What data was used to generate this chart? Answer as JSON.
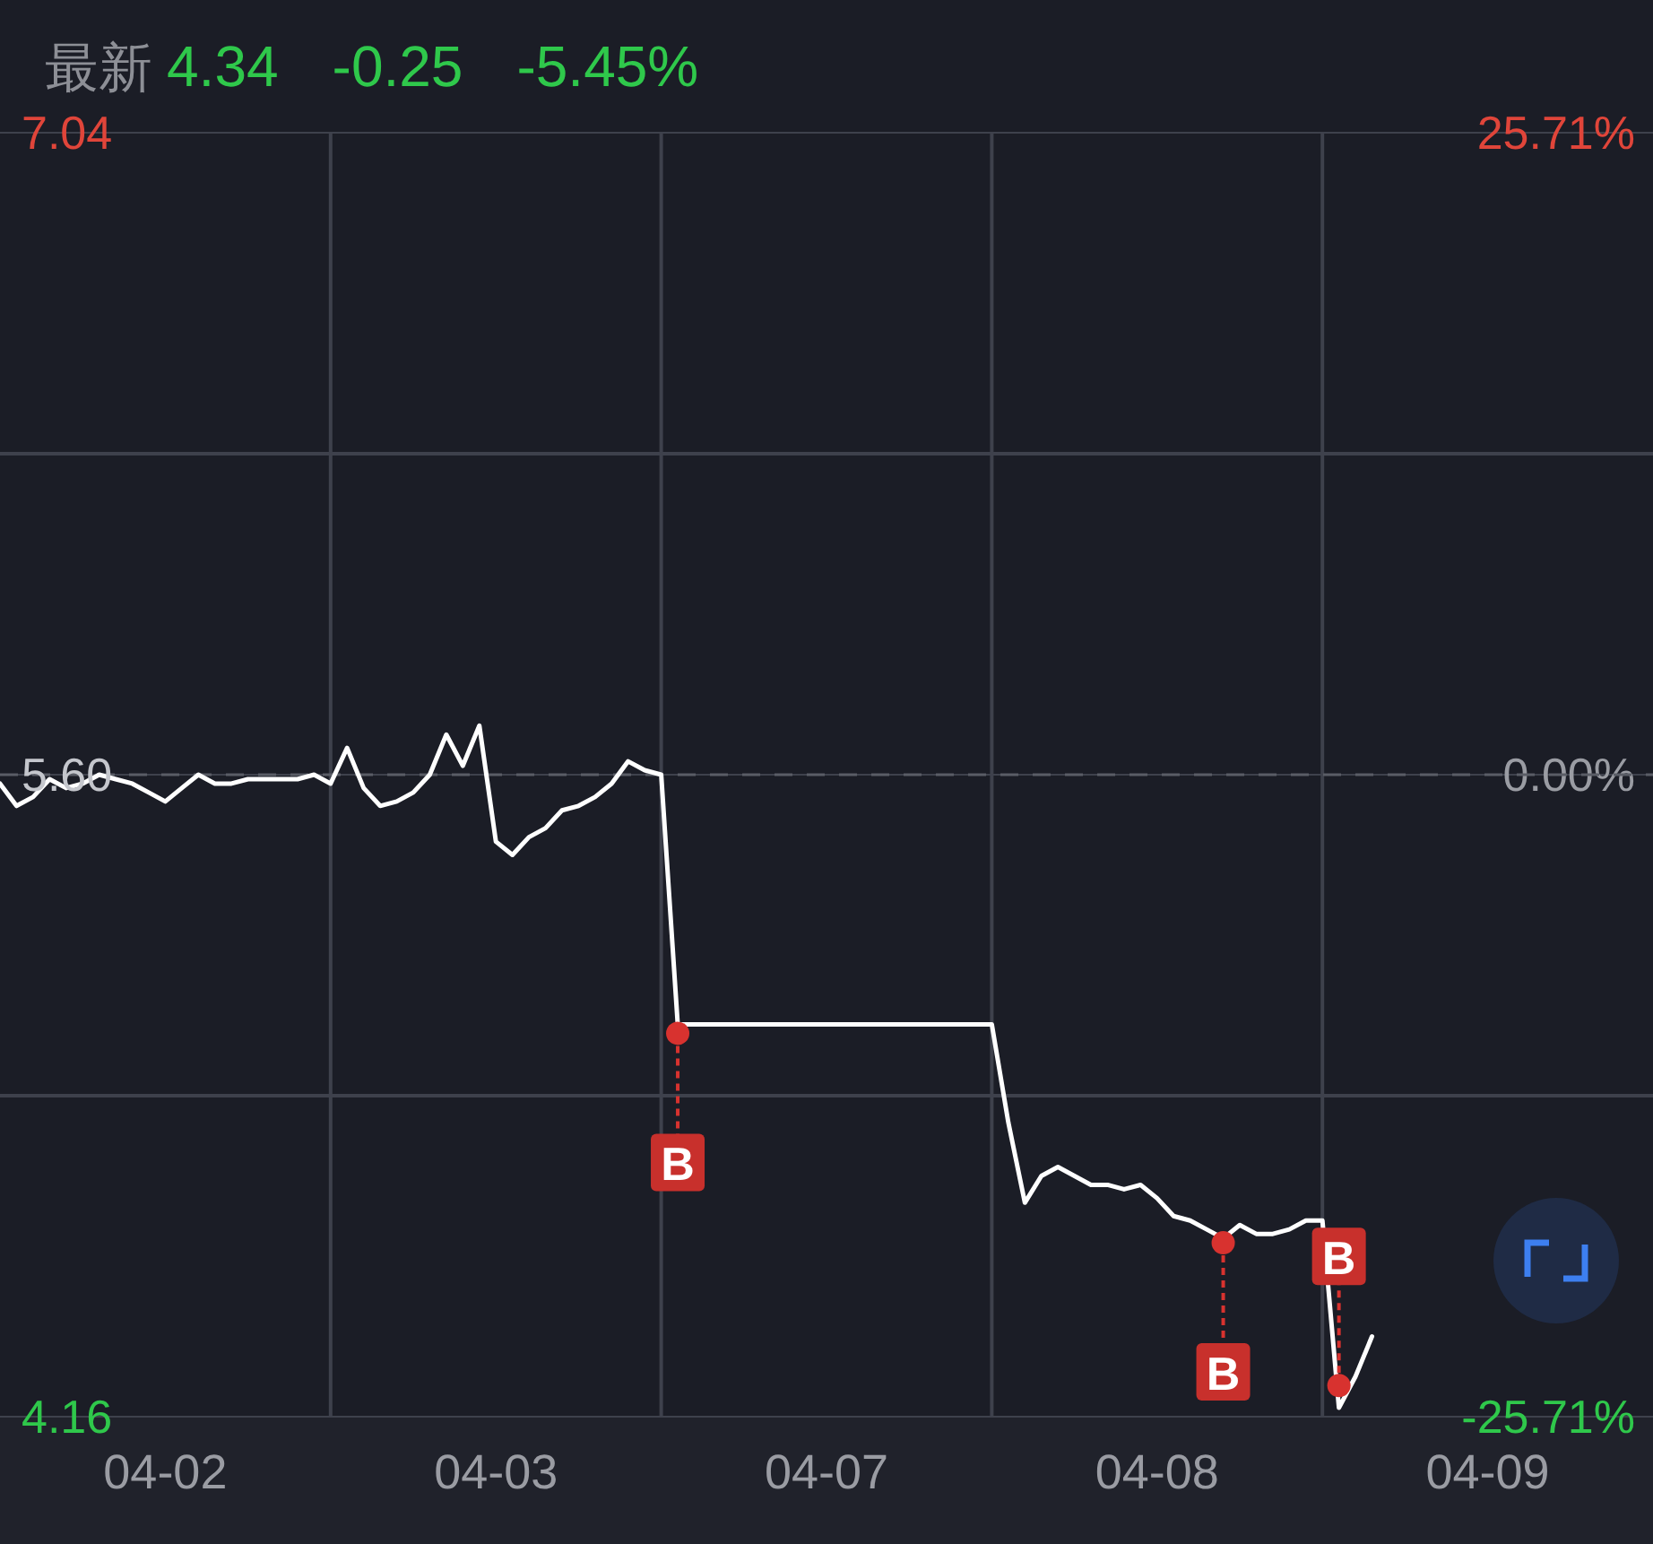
{
  "chart_data": {
    "type": "line",
    "title": "最新",
    "annotations": [
      "4.34",
      "-0.25",
      "-5.45%"
    ],
    "categories": [
      null,
      null,
      null,
      null,
      null,
      null,
      null,
      null,
      null,
      null,
      "04-02",
      null,
      null,
      null,
      null,
      null,
      null,
      null,
      null,
      null,
      null,
      null,
      null,
      null,
      null,
      null,
      null,
      null,
      null,
      null,
      "04-03",
      null,
      null,
      null,
      null,
      null,
      null,
      null,
      null,
      null,
      null,
      null,
      null,
      null,
      null,
      null,
      null,
      null,
      null,
      null,
      "04-07",
      null,
      null,
      null,
      null,
      null,
      null,
      null,
      null,
      null,
      null,
      null,
      null,
      null,
      null,
      null,
      null,
      null,
      null,
      null,
      "04-08",
      null,
      null,
      null,
      null,
      null,
      null,
      null,
      null,
      null,
      null,
      null,
      null,
      null,
      null,
      null,
      null,
      null,
      null,
      null,
      "04-09",
      null,
      null,
      null,
      null,
      null,
      null,
      null,
      null,
      null
    ],
    "ylim": [
      4.16,
      7.04
    ],
    "yticks": [
      7.04,
      {
        "value": 5.6,
        "label": "5.60"
      },
      4.16
    ],
    "y2lim": [
      -25.71,
      25.71
    ],
    "y2ticks": [
      {
        "value": 25.71,
        "label": "25.71%"
      },
      {
        "value": 0,
        "label": "0.00%"
      },
      {
        "value": -25.71,
        "label": "-25.71%"
      }
    ],
    "ref_lines": [
      {
        "axis": "y",
        "value": 5.6,
        "line_style": "dashed",
        "color": "#5a5d66"
      }
    ],
    "grid": true,
    "series": [
      {
        "color": "#ffffff",
        "values": [
          5.58,
          5.53,
          5.55,
          5.59,
          5.57,
          5.58,
          5.6,
          5.59,
          5.58,
          5.56,
          5.54,
          5.57,
          5.6,
          5.58,
          5.58,
          5.59,
          5.59,
          5.59,
          5.59,
          5.6,
          5.58,
          5.66,
          5.57,
          5.53,
          5.54,
          5.56,
          5.6,
          5.69,
          5.62,
          5.71,
          5.45,
          5.42,
          5.46,
          5.48,
          5.52,
          5.53,
          5.55,
          5.58,
          5.63,
          5.61,
          5.6,
          5.04,
          5.04,
          5.04,
          5.04,
          5.04,
          5.04,
          5.04,
          5.04,
          5.04,
          5.04,
          5.04,
          5.04,
          5.04,
          5.04,
          5.04,
          5.04,
          5.04,
          5.04,
          5.04,
          5.04,
          4.82,
          4.64,
          4.7,
          4.72,
          4.7,
          4.68,
          4.68,
          4.67,
          4.68,
          4.65,
          4.61,
          4.6,
          4.58,
          4.56,
          4.59,
          4.57,
          4.57,
          4.58,
          4.6,
          4.6,
          4.18,
          4.25,
          4.34,
          null,
          null,
          null,
          null,
          null,
          null,
          null,
          null,
          null,
          null,
          null,
          null,
          null,
          null,
          null,
          null
        ]
      },
      {
        "type": "scatter",
        "marker": "circle",
        "color": "#d8322f",
        "values": [
          null,
          null,
          null,
          null,
          null,
          null,
          null,
          null,
          null,
          null,
          null,
          null,
          null,
          null,
          null,
          null,
          null,
          null,
          null,
          null,
          null,
          null,
          null,
          null,
          null,
          null,
          null,
          null,
          null,
          null,
          null,
          null,
          null,
          null,
          null,
          null,
          null,
          null,
          null,
          null,
          null,
          5.02,
          null,
          null,
          null,
          null,
          null,
          null,
          null,
          null,
          null,
          null,
          null,
          null,
          null,
          null,
          null,
          null,
          null,
          null,
          null,
          null,
          null,
          null,
          null,
          null,
          null,
          null,
          null,
          null,
          null,
          null,
          null,
          null,
          4.55,
          null,
          null,
          null,
          null,
          null,
          null,
          4.23,
          null,
          null,
          null,
          null,
          null,
          null,
          null,
          null,
          null,
          null,
          null,
          null,
          null,
          null,
          null,
          null,
          null,
          null
        ],
        "value_labels": [
          null,
          null,
          null,
          null,
          null,
          null,
          null,
          null,
          null,
          null,
          null,
          null,
          null,
          null,
          null,
          null,
          null,
          null,
          null,
          null,
          null,
          null,
          null,
          null,
          null,
          null,
          null,
          null,
          null,
          null,
          null,
          null,
          null,
          null,
          null,
          null,
          null,
          null,
          null,
          null,
          null,
          "B",
          null,
          null,
          null,
          null,
          null,
          null,
          null,
          null,
          null,
          null,
          null,
          null,
          null,
          null,
          null,
          null,
          null,
          null,
          null,
          null,
          null,
          null,
          null,
          null,
          null,
          null,
          null,
          null,
          null,
          null,
          null,
          null,
          "B",
          null,
          null,
          null,
          null,
          null,
          null,
          "B",
          null,
          null,
          null,
          null,
          null,
          null,
          null,
          null,
          null,
          null,
          null,
          null,
          null,
          null,
          null,
          null,
          null,
          null
        ]
      }
    ]
  }
}
